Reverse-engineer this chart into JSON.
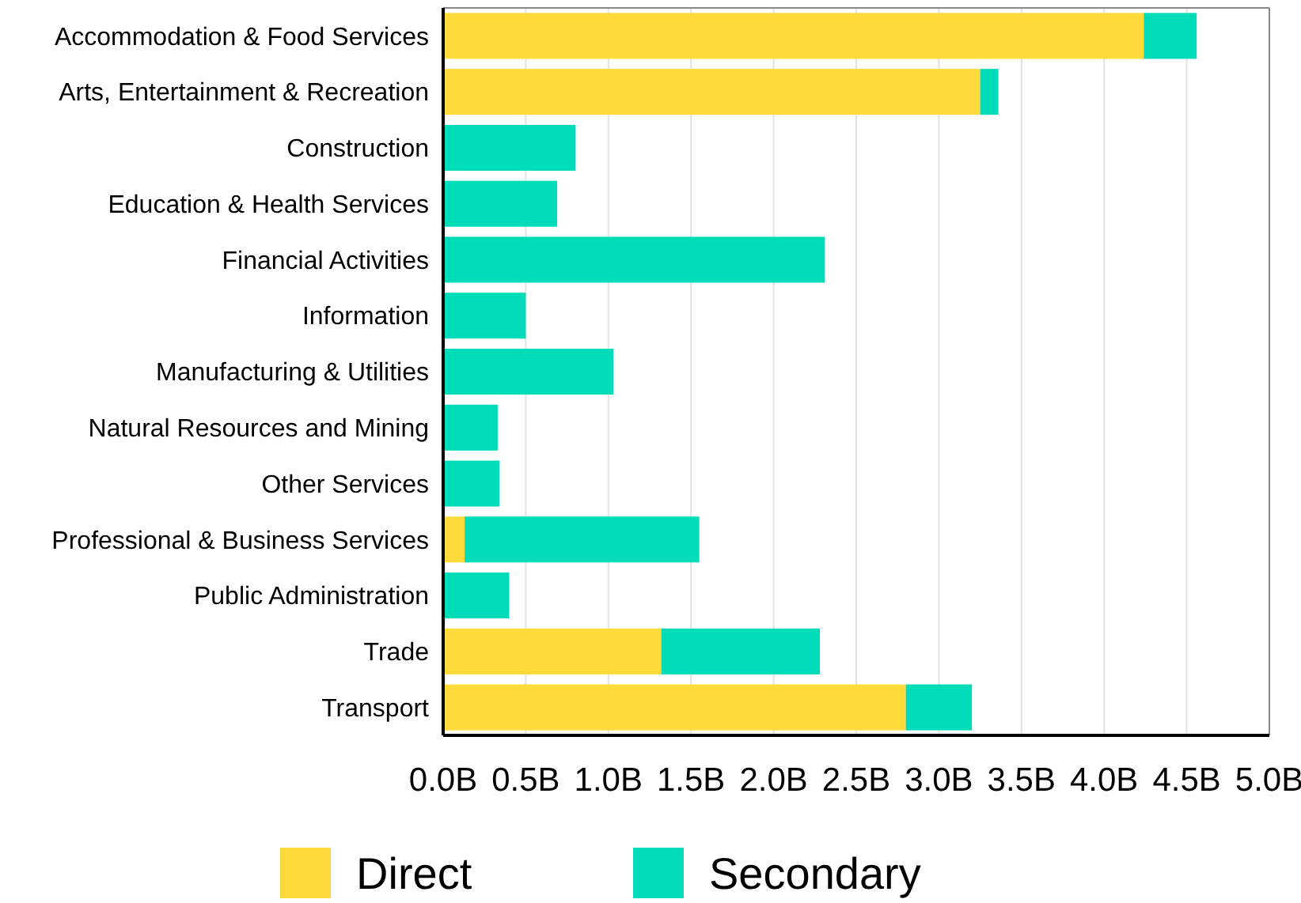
{
  "chart_data": {
    "type": "bar",
    "orientation": "horizontal",
    "stacked": true,
    "categories": [
      "Accommodation & Food Services",
      "Arts, Entertainment & Recreation",
      "Construction",
      "Education & Health Services",
      "Financial Activities",
      "Information",
      "Manufacturing & Utilities",
      "Natural Resources and Mining",
      "Other Services",
      "Professional & Business Services",
      "Public Administration",
      "Trade",
      "Transport"
    ],
    "series": [
      {
        "name": "Direct",
        "color": "#fedb3a",
        "values": [
          4.24,
          3.25,
          0,
          0,
          0,
          0,
          0,
          0,
          0,
          0.13,
          0,
          1.32,
          2.8
        ]
      },
      {
        "name": "Secondary",
        "color": "#00dbb8",
        "values": [
          0.32,
          0.11,
          0.8,
          0.69,
          2.31,
          0.5,
          1.03,
          0.33,
          0.34,
          1.42,
          0.4,
          0.96,
          0.4
        ]
      }
    ],
    "xlim": [
      0,
      5
    ],
    "xticks": [
      {
        "value": 0,
        "label": "0.0B"
      },
      {
        "value": 0.5,
        "label": "0.5B"
      },
      {
        "value": 1,
        "label": "1.0B"
      },
      {
        "value": 1.5,
        "label": "1.5B"
      },
      {
        "value": 2,
        "label": "2.0B"
      },
      {
        "value": 2.5,
        "label": "2.5B"
      },
      {
        "value": 3,
        "label": "3.0B"
      },
      {
        "value": 3.5,
        "label": "3.5B"
      },
      {
        "value": 4,
        "label": "4.0B"
      },
      {
        "value": 4.5,
        "label": "4.5B"
      },
      {
        "value": 5,
        "label": "5.0B"
      }
    ],
    "grid": "x",
    "legend": "bottom"
  }
}
